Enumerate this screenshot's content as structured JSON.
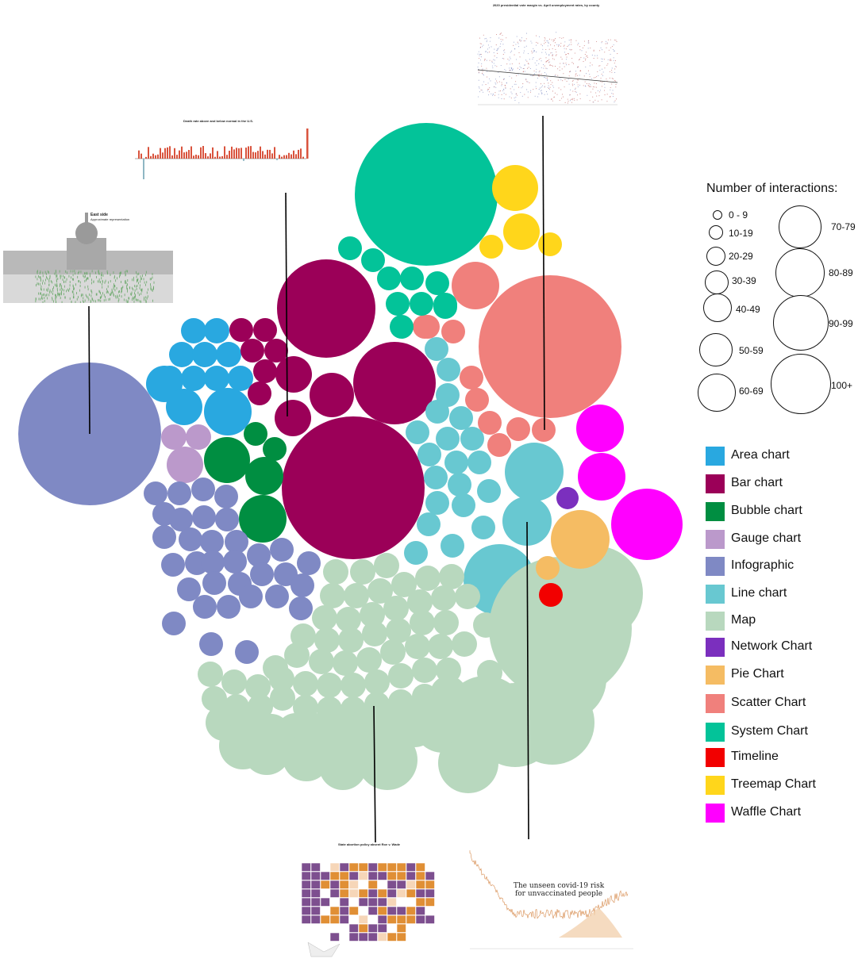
{
  "chart_data": {
    "type": "bubble-pack",
    "size_legend": {
      "title": "Number of interactions:",
      "bins": [
        "0 - 9",
        "10-19",
        "20-29",
        "30-39",
        "40-49",
        "50-59",
        "60-69",
        "70-79",
        "80-89",
        "90-99",
        "100+"
      ]
    },
    "categories": [
      {
        "name": "Area chart",
        "color": "#29A8E0",
        "bubbles": [
          "20-29",
          "20-29",
          "20-29",
          "20-29",
          "20-29",
          "20-29",
          "20-29",
          "20-29",
          "20-29",
          "20-29",
          "30-39",
          "30-39",
          "50-59"
        ]
      },
      {
        "name": "Bar chart",
        "color": "#9B0058",
        "bubbles": [
          "10-19",
          "10-19",
          "10-19",
          "10-19",
          "10-19",
          "10-19",
          "20-29",
          "30-39",
          "30-39",
          "40-49",
          "80-89",
          "80-89",
          "100+"
        ]
      },
      {
        "name": "Bubble chart",
        "color": "#008E41",
        "bubbles": [
          "10-19",
          "10-19",
          "30-39",
          "50-59",
          "50-59"
        ]
      },
      {
        "name": "Gauge chart",
        "color": "#BB99CB",
        "bubbles": [
          "20-29",
          "20-29",
          "30-39"
        ]
      },
      {
        "name": "Infographic",
        "color": "#7F89C4",
        "bubbles": [
          "20-29",
          "20-29",
          "20-29",
          "20-29",
          "20-29",
          "20-29",
          "20-29",
          "20-29",
          "20-29",
          "20-29",
          "20-29",
          "20-29",
          "20-29",
          "20-29",
          "20-29",
          "20-29",
          "20-29",
          "20-29",
          "20-29",
          "20-29",
          "20-29",
          "20-29",
          "20-29",
          "20-29",
          "20-29",
          "20-29",
          "20-29",
          "20-29",
          "30-39",
          "30-39",
          "50-59",
          "50-59",
          "100+",
          "100+"
        ]
      },
      {
        "name": "Line chart",
        "color": "#68C8D1",
        "bubbles": [
          "20-29",
          "20-29",
          "20-29",
          "20-29",
          "20-29",
          "20-29",
          "20-29",
          "20-29",
          "20-29",
          "20-29",
          "20-29",
          "20-29",
          "20-29",
          "20-29",
          "20-29",
          "20-29",
          "30-39",
          "30-39",
          "30-39",
          "30-39",
          "30-39",
          "50-59",
          "50-59",
          "70-79"
        ]
      },
      {
        "name": "Map",
        "color": "#B8D8BE",
        "bubbles": [
          "20-29",
          "20-29",
          "20-29",
          "20-29",
          "20-29",
          "20-29",
          "20-29",
          "20-29",
          "20-29",
          "20-29",
          "20-29",
          "20-29",
          "20-29",
          "20-29",
          "20-29",
          "20-29",
          "20-29",
          "20-29",
          "20-29",
          "20-29",
          "20-29",
          "20-29",
          "20-29",
          "20-29",
          "20-29",
          "20-29",
          "20-29",
          "20-29",
          "20-29",
          "20-29",
          "20-29",
          "20-29",
          "20-29",
          "20-29",
          "20-29",
          "20-29",
          "20-29",
          "20-29",
          "20-29",
          "20-29",
          "20-29",
          "20-29",
          "20-29",
          "20-29",
          "20-29",
          "20-29",
          "20-29",
          "20-29",
          "20-29",
          "20-29",
          "20-29",
          "20-29",
          "20-29",
          "20-29",
          "20-29",
          "20-29",
          "30-39",
          "30-39",
          "30-39",
          "30-39",
          "30-39",
          "30-39",
          "40-49",
          "40-49",
          "40-49",
          "40-49",
          "40-49",
          "40-49",
          "40-49",
          "40-49",
          "40-49",
          "50-59",
          "50-59",
          "50-59",
          "60-69",
          "60-69",
          "60-69",
          "60-69",
          "90-99",
          "100+"
        ]
      },
      {
        "name": "Network Chart",
        "color": "#7B2FBE",
        "bubbles": [
          "10-19"
        ]
      },
      {
        "name": "Pie Chart",
        "color": "#F5BC63",
        "bubbles": [
          "10-19",
          "50-59"
        ]
      },
      {
        "name": "Scatter Chart",
        "color": "#F0807C",
        "bubbles": [
          "10-19",
          "10-19",
          "10-19",
          "10-19",
          "10-19",
          "10-19",
          "10-19",
          "10-19",
          "10-19",
          "10-19",
          "10-19",
          "40-49",
          "100+"
        ]
      },
      {
        "name": "System Chart",
        "color": "#03C399",
        "bubbles": [
          "10-19",
          "10-19",
          "10-19",
          "10-19",
          "10-19",
          "10-19",
          "10-19",
          "10-19",
          "10-19",
          "10-19",
          "100+"
        ]
      },
      {
        "name": "Timeline",
        "color": "#F20000",
        "bubbles": [
          "10-19"
        ]
      },
      {
        "name": "Treemap Chart",
        "color": "#FFD61B",
        "bubbles": [
          "10-19",
          "10-19",
          "40-49",
          "40-49",
          "40-49"
        ]
      },
      {
        "name": "Waffle Chart",
        "color": "#FF00FF",
        "bubbles": [
          "50-59",
          "50-59",
          "70-79"
        ]
      }
    ]
  },
  "thumbnails": [
    {
      "id": "scatter",
      "title": "2020 presidential vote margin vs. April unemployment rates, by county"
    },
    {
      "id": "bar",
      "title": "Death rate above and below normal in the U.S."
    },
    {
      "id": "infographic",
      "title": "East side",
      "subtitle": "Approximate representation"
    },
    {
      "id": "map",
      "title": "State abortion policy absent Roe v. Wade"
    },
    {
      "id": "line",
      "title": "The unseen covid-19 risk for unvaccinated people"
    }
  ]
}
